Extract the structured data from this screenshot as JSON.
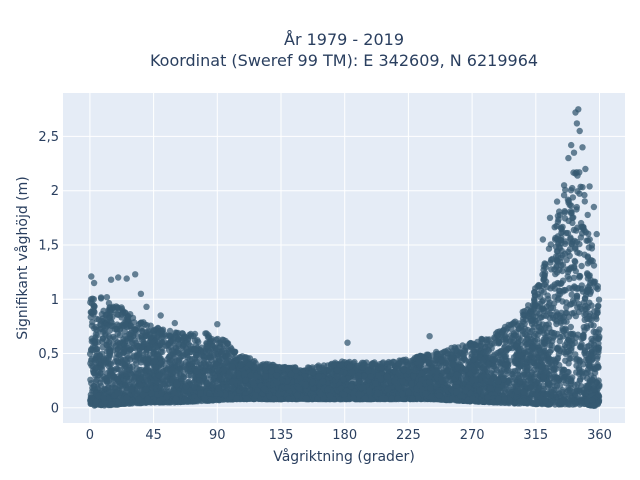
{
  "chart_data": {
    "type": "scatter",
    "title_line1": "År 1979 - 2019",
    "title_line2": "Koordinat (Sweref 99 TM): E 342609, N 6219964",
    "xlabel": "Vågriktning (grader)",
    "ylabel": "Signifikant våghöjd (m)",
    "xlim": [
      -19,
      378
    ],
    "ylim": [
      -0.14,
      2.9
    ],
    "xticks": [
      0,
      45,
      90,
      135,
      180,
      225,
      270,
      315,
      360
    ],
    "xtick_labels": [
      "0",
      "45",
      "90",
      "135",
      "180",
      "225",
      "270",
      "315",
      "360"
    ],
    "yticks": [
      0,
      0.5,
      1,
      1.5,
      2,
      2.5
    ],
    "ytick_labels": [
      "0",
      "0,5",
      "1",
      "1,5",
      "2",
      "2,5"
    ],
    "grid": true,
    "marker_color": "#355a72",
    "plot_bg": "#e5ecf6",
    "envelope": {
      "x": [
        0,
        10,
        20,
        30,
        45,
        60,
        75,
        90,
        105,
        120,
        135,
        150,
        165,
        180,
        195,
        210,
        225,
        240,
        255,
        270,
        285,
        300,
        310,
        320,
        330,
        340,
        345,
        350,
        355,
        360
      ],
      "y_max": [
        1.0,
        1.05,
        0.95,
        0.85,
        0.75,
        0.7,
        0.68,
        0.7,
        0.5,
        0.42,
        0.38,
        0.37,
        0.4,
        0.43,
        0.42,
        0.42,
        0.45,
        0.5,
        0.55,
        0.6,
        0.68,
        0.8,
        0.95,
        1.3,
        1.75,
        2.2,
        2.25,
        2.0,
        1.5,
        1.0
      ],
      "y_min": [
        0.02,
        0.02,
        0.03,
        0.04,
        0.05,
        0.05,
        0.06,
        0.07,
        0.08,
        0.08,
        0.08,
        0.08,
        0.08,
        0.08,
        0.08,
        0.08,
        0.08,
        0.08,
        0.07,
        0.06,
        0.05,
        0.04,
        0.04,
        0.03,
        0.03,
        0.03,
        0.03,
        0.03,
        0.02,
        0.02
      ]
    },
    "outliers": [
      [
        1,
        1.21
      ],
      [
        3,
        1.15
      ],
      [
        15,
        1.18
      ],
      [
        20,
        1.2
      ],
      [
        26,
        1.19
      ],
      [
        32,
        1.23
      ],
      [
        36,
        1.05
      ],
      [
        40,
        0.93
      ],
      [
        50,
        0.85
      ],
      [
        60,
        0.78
      ],
      [
        90,
        0.77
      ],
      [
        182,
        0.6
      ],
      [
        240,
        0.66
      ],
      [
        320,
        1.55
      ],
      [
        325,
        1.75
      ],
      [
        330,
        1.9
      ],
      [
        335,
        2.05
      ],
      [
        338,
        2.3
      ],
      [
        340,
        2.42
      ],
      [
        342,
        2.35
      ],
      [
        343,
        2.72
      ],
      [
        345,
        2.75
      ],
      [
        344,
        2.62
      ],
      [
        346,
        2.55
      ],
      [
        348,
        2.4
      ],
      [
        350,
        2.2
      ],
      [
        353,
        2.04
      ],
      [
        356,
        1.85
      ],
      [
        358,
        1.6
      ]
    ]
  }
}
